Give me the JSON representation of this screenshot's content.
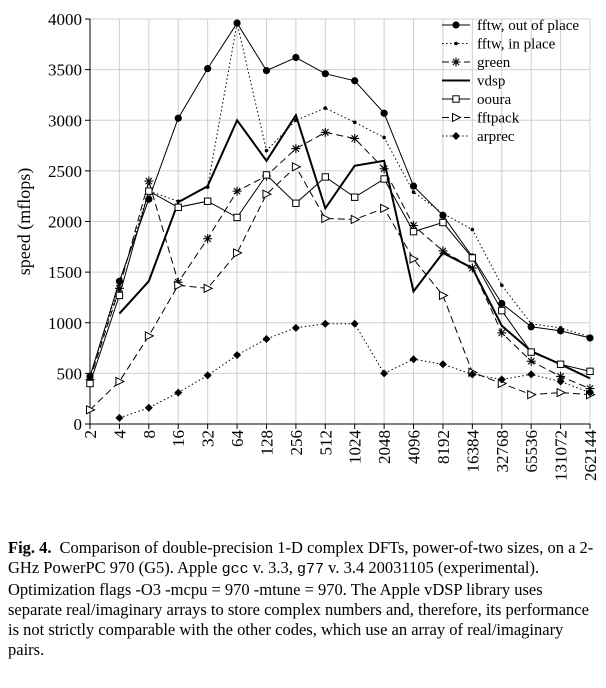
{
  "chart_data": {
    "type": "line",
    "xlabel": "",
    "ylabel": "speed (mflops)",
    "ylim": [
      0,
      4000
    ],
    "yticks": [
      0,
      500,
      1000,
      1500,
      2000,
      2500,
      3000,
      3500,
      4000
    ],
    "categories": [
      "2",
      "4",
      "8",
      "16",
      "32",
      "64",
      "128",
      "256",
      "512",
      "1024",
      "2048",
      "4096",
      "8192",
      "16384",
      "32768",
      "65536",
      "131072",
      "262144"
    ],
    "grid": true,
    "legend_position": "top-right",
    "series": [
      {
        "name": "fftw, out of place",
        "style": "solid",
        "width": 1,
        "marker": "filled-circle",
        "values": [
          470,
          1410,
          2220,
          3020,
          3510,
          3960,
          3490,
          3620,
          3460,
          3390,
          3070,
          2350,
          2060,
          1650,
          1190,
          960,
          920,
          850
        ]
      },
      {
        "name": "fftw, in place",
        "style": "dotted",
        "width": 1,
        "marker": "small-dot",
        "values": [
          460,
          1380,
          2300,
          2200,
          2340,
          3960,
          2700,
          3000,
          3120,
          2980,
          2830,
          2290,
          2080,
          1920,
          1370,
          990,
          950,
          860
        ]
      },
      {
        "name": "green",
        "style": "dashed",
        "width": 1,
        "marker": "asterisk",
        "values": [
          440,
          1340,
          2400,
          1400,
          1830,
          2300,
          2450,
          2720,
          2880,
          2820,
          2520,
          1960,
          1710,
          1540,
          900,
          620,
          470,
          350
        ]
      },
      {
        "name": "vdsp",
        "style": "solid",
        "width": 2,
        "marker": "none",
        "values": [
          null,
          1090,
          1410,
          2190,
          2350,
          3000,
          2600,
          3050,
          2130,
          2550,
          2600,
          1310,
          1690,
          1540,
          970,
          720,
          590,
          450
        ]
      },
      {
        "name": "ooura",
        "style": "solid",
        "width": 1,
        "marker": "open-square",
        "values": [
          400,
          1270,
          2300,
          2140,
          2200,
          2040,
          2460,
          2180,
          2440,
          2240,
          2420,
          1900,
          1990,
          1640,
          1120,
          710,
          590,
          520
        ]
      },
      {
        "name": "fftpack",
        "style": "dashed",
        "width": 1,
        "marker": "open-triangle",
        "values": [
          140,
          420,
          870,
          1370,
          1340,
          1690,
          2270,
          2540,
          2030,
          2020,
          2130,
          1630,
          1270,
          510,
          400,
          290,
          310,
          290
        ]
      },
      {
        "name": "arprec",
        "style": "dotted",
        "width": 1,
        "marker": "filled-diamond",
        "values": [
          null,
          60,
          160,
          310,
          480,
          680,
          840,
          950,
          990,
          990,
          500,
          640,
          590,
          490,
          440,
          490,
          420,
          310
        ]
      }
    ]
  },
  "caption": {
    "label": "Fig. 4.",
    "part1": "Comparison of double-precision 1-D complex DFTs, power-of-two sizes, on a 2-GHz PowerPC 970 (G5). Apple ",
    "code1": "gcc",
    "part2": " v. 3.3, ",
    "code2": "g77",
    "part3": " v. 3.4 20031105 (experimental). Optimization flags -O3 -mcpu = 970 -mtune = 970. The Apple vDSP library uses separate real/imaginary arrays to store complex numbers and, therefore, its performance is not strictly comparable with the other codes, which use an array of real/imaginary pairs."
  }
}
